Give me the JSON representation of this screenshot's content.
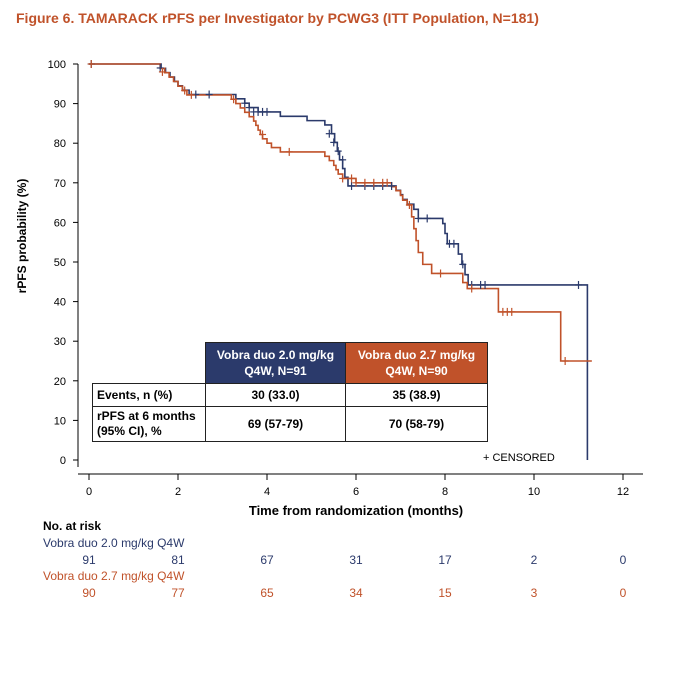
{
  "figure_title": "Figure 6. TAMARACK rPFS per Investigator by PCWG3 (ITT Population, N=181)",
  "colors": {
    "blue": "#2b3a6b",
    "red": "#c0522a",
    "title": "#c0522a"
  },
  "chart_data": {
    "type": "line",
    "subtype": "kaplan-meier step",
    "xlabel": "Time from randomization (months)",
    "ylabel": "rPFS probability (%)",
    "xlim": [
      0,
      12
    ],
    "ylim": [
      0,
      100
    ],
    "xticks": [
      0,
      2,
      4,
      6,
      8,
      10,
      12
    ],
    "yticks": [
      0,
      10,
      20,
      30,
      40,
      50,
      60,
      70,
      80,
      90,
      100
    ],
    "censored_label": "+ CENSORED",
    "series": [
      {
        "name": "Vobra duo 2.0 mg/kg Q4W",
        "color": "#2b3a6b",
        "steps": [
          [
            0,
            100
          ],
          [
            1.55,
            100
          ],
          [
            1.62,
            98.9
          ],
          [
            1.72,
            97.8
          ],
          [
            1.82,
            96.7
          ],
          [
            1.92,
            95.6
          ],
          [
            2.0,
            94.5
          ],
          [
            2.1,
            93.4
          ],
          [
            2.25,
            92.3
          ],
          [
            3.3,
            91.2
          ],
          [
            3.5,
            90.1
          ],
          [
            3.6,
            89.0
          ],
          [
            3.8,
            87.9
          ],
          [
            4.3,
            86.8
          ],
          [
            4.9,
            85.7
          ],
          [
            5.3,
            84.6
          ],
          [
            5.45,
            82.4
          ],
          [
            5.52,
            80.2
          ],
          [
            5.58,
            78.0
          ],
          [
            5.63,
            75.8
          ],
          [
            5.7,
            73.6
          ],
          [
            5.75,
            71.4
          ],
          [
            5.82,
            69.2
          ],
          [
            6.9,
            68.1
          ],
          [
            7.0,
            67.0
          ],
          [
            7.05,
            65.8
          ],
          [
            7.15,
            64.6
          ],
          [
            7.3,
            63.3
          ],
          [
            7.4,
            61.0
          ],
          [
            7.95,
            59.7
          ],
          [
            8.0,
            57.2
          ],
          [
            8.05,
            54.6
          ],
          [
            8.3,
            52.0
          ],
          [
            8.38,
            49.4
          ],
          [
            8.45,
            46.8
          ],
          [
            8.52,
            44.2
          ],
          [
            11.2,
            44.2
          ],
          [
            11.2,
            0
          ]
        ],
        "censored": [
          [
            0.05,
            100
          ],
          [
            1.6,
            99
          ],
          [
            2.4,
            92.3
          ],
          [
            2.7,
            92.3
          ],
          [
            3.5,
            90.1
          ],
          [
            3.6,
            89
          ],
          [
            3.7,
            87.9
          ],
          [
            3.8,
            87.9
          ],
          [
            3.9,
            87.9
          ],
          [
            4.0,
            87.9
          ],
          [
            5.4,
            82.4
          ],
          [
            5.5,
            80.2
          ],
          [
            5.6,
            78
          ],
          [
            5.7,
            75.8
          ],
          [
            5.9,
            69.2
          ],
          [
            6.2,
            69.2
          ],
          [
            6.4,
            69.2
          ],
          [
            6.6,
            69.2
          ],
          [
            6.8,
            69.2
          ],
          [
            7.4,
            61
          ],
          [
            7.6,
            61
          ],
          [
            8.1,
            54.6
          ],
          [
            8.2,
            54.6
          ],
          [
            8.4,
            49.4
          ],
          [
            8.6,
            44.2
          ],
          [
            8.8,
            44.2
          ],
          [
            8.9,
            44.2
          ],
          [
            11.0,
            44.2
          ]
        ],
        "at_risk": [
          91,
          81,
          67,
          31,
          17,
          2,
          0
        ]
      },
      {
        "name": "Vobra duo 2.7 mg/kg Q4W",
        "color": "#c0522a",
        "steps": [
          [
            0,
            100
          ],
          [
            1.5,
            100
          ],
          [
            1.6,
            98.9
          ],
          [
            1.7,
            97.8
          ],
          [
            1.8,
            96.7
          ],
          [
            1.9,
            95.6
          ],
          [
            2.0,
            94.4
          ],
          [
            2.1,
            93.3
          ],
          [
            2.2,
            92.2
          ],
          [
            3.2,
            91.1
          ],
          [
            3.3,
            90.0
          ],
          [
            3.4,
            88.9
          ],
          [
            3.5,
            87.8
          ],
          [
            3.6,
            86.7
          ],
          [
            3.7,
            85.6
          ],
          [
            3.75,
            84.5
          ],
          [
            3.8,
            83.3
          ],
          [
            3.85,
            82.2
          ],
          [
            3.9,
            81.1
          ],
          [
            4.0,
            80.0
          ],
          [
            4.1,
            78.9
          ],
          [
            4.3,
            77.8
          ],
          [
            5.3,
            76.7
          ],
          [
            5.4,
            75.6
          ],
          [
            5.5,
            74.4
          ],
          [
            5.55,
            73.3
          ],
          [
            5.6,
            72.2
          ],
          [
            5.7,
            71.1
          ],
          [
            6.0,
            70.0
          ],
          [
            6.8,
            69.0
          ],
          [
            6.9,
            68.0
          ],
          [
            7.0,
            66.8
          ],
          [
            7.05,
            65.6
          ],
          [
            7.15,
            64.4
          ],
          [
            7.25,
            61.4
          ],
          [
            7.3,
            58.4
          ],
          [
            7.35,
            55.4
          ],
          [
            7.4,
            52.4
          ],
          [
            7.5,
            49.4
          ],
          [
            7.7,
            47.1
          ],
          [
            8.4,
            44.8
          ],
          [
            8.5,
            43.3
          ],
          [
            9.2,
            37.4
          ],
          [
            10.6,
            25.0
          ],
          [
            11.3,
            25.0
          ]
        ],
        "censored": [
          [
            0.05,
            100
          ],
          [
            1.65,
            98
          ],
          [
            2.15,
            93.3
          ],
          [
            2.3,
            92.2
          ],
          [
            3.25,
            91.1
          ],
          [
            3.9,
            82.2
          ],
          [
            4.5,
            77.8
          ],
          [
            5.7,
            71.1
          ],
          [
            5.9,
            71.1
          ],
          [
            6.0,
            70
          ],
          [
            6.2,
            70
          ],
          [
            6.4,
            70
          ],
          [
            6.6,
            70
          ],
          [
            6.7,
            70
          ],
          [
            7.2,
            64.4
          ],
          [
            7.9,
            47.1
          ],
          [
            8.6,
            43.3
          ],
          [
            9.3,
            37.4
          ],
          [
            9.4,
            37.4
          ],
          [
            9.5,
            37.4
          ],
          [
            10.7,
            25.0
          ]
        ],
        "at_risk": [
          90,
          77,
          65,
          34,
          15,
          3,
          0
        ]
      }
    ]
  },
  "summary_table": {
    "headers": [
      "Vobra duo 2.0 mg/kg Q4W, N=91",
      "Vobra duo 2.7 mg/kg Q4W, N=90"
    ],
    "header_lines": [
      [
        "Vobra duo 2.0 mg/kg",
        "Q4W, N=91"
      ],
      [
        "Vobra duo 2.7 mg/kg",
        "Q4W, N=90"
      ]
    ],
    "rows": [
      {
        "label": "Events, n (%)",
        "label_lines": [
          "Events, n (%)"
        ],
        "values": [
          "30 (33.0)",
          "35 (38.9)"
        ]
      },
      {
        "label": "rPFS at 6 months (95% CI), %",
        "label_lines": [
          "rPFS at 6 months",
          "(95% CI), %"
        ],
        "values": [
          "69 (57-79)",
          "70 (58-79)"
        ]
      }
    ]
  },
  "risk_table": {
    "heading": "No. at risk",
    "times": [
      0,
      2,
      4,
      6,
      8,
      10,
      12
    ],
    "groups": [
      {
        "name": "Vobra duo 2.0 mg/kg Q4W",
        "values": [
          91,
          81,
          67,
          31,
          17,
          2,
          0
        ]
      },
      {
        "name": "Vobra duo 2.7 mg/kg Q4W",
        "values": [
          90,
          77,
          65,
          34,
          15,
          3,
          0
        ]
      }
    ]
  }
}
